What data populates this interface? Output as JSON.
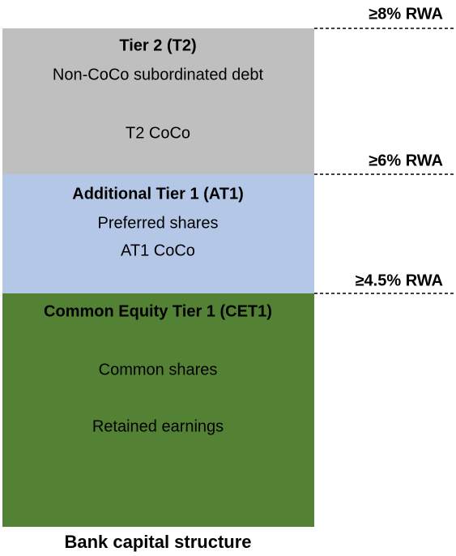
{
  "tiers": [
    {
      "title": "Tier 2 (T2)",
      "items": [
        "Non-CoCo subordinated debt",
        "T2 CoCo"
      ]
    },
    {
      "title": "Additional Tier 1 (AT1)",
      "items": [
        "Preferred shares",
        "AT1 CoCo"
      ]
    },
    {
      "title": "Common Equity Tier 1 (CET1)",
      "items": [
        "Common shares",
        "Retained earnings"
      ]
    }
  ],
  "thresholds": [
    "≥8% RWA",
    "≥6% RWA",
    "≥4.5% RWA"
  ],
  "caption": "Bank capital structure"
}
